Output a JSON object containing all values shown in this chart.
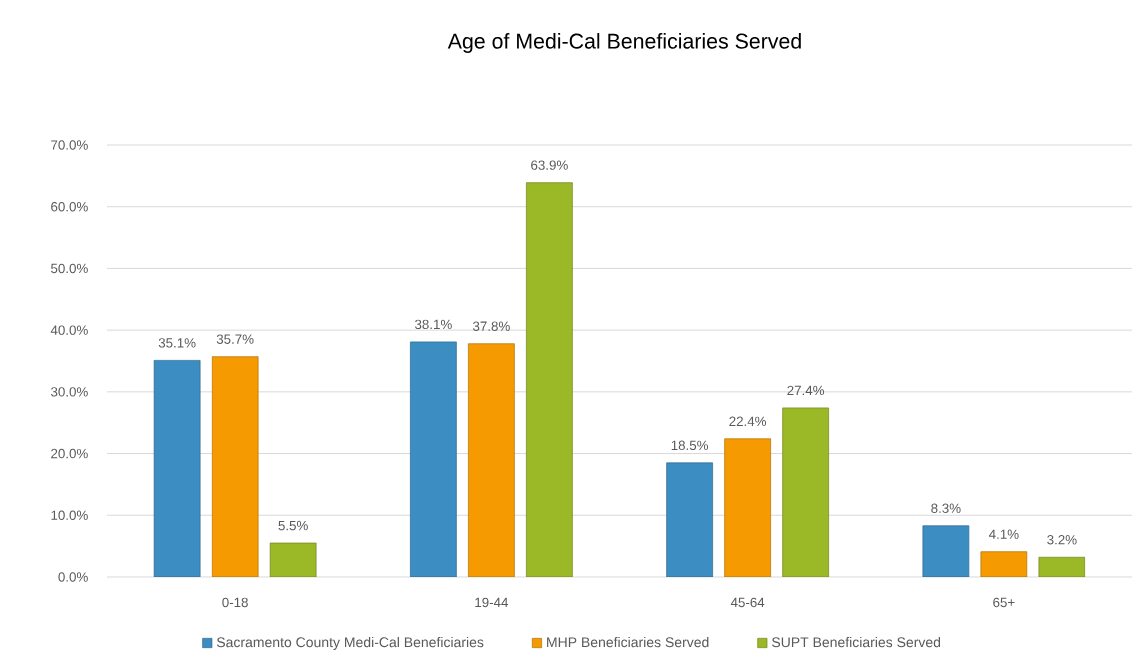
{
  "chart_data": {
    "type": "bar",
    "title": "Age of Medi-Cal Beneficiaries Served",
    "categories": [
      "0-18",
      "19-44",
      "45-64",
      "65+"
    ],
    "series": [
      {
        "name": "Sacramento County Medi-Cal Beneficiaries",
        "color": "#3c8dc2",
        "values": [
          35.1,
          38.1,
          18.5,
          8.3
        ],
        "value_labels": [
          "35.1%",
          "38.1%",
          "18.5%",
          "8.3%"
        ]
      },
      {
        "name": "MHP Beneficiaries Served",
        "color": "#f59a00",
        "values": [
          35.7,
          37.8,
          22.4,
          4.1
        ],
        "value_labels": [
          "35.7%",
          "37.8%",
          "22.4%",
          "4.1%"
        ]
      },
      {
        "name": "SUPT Beneficiaries Served",
        "color": "#9bb826",
        "values": [
          5.5,
          63.9,
          27.4,
          3.2
        ],
        "value_labels": [
          "5.5%",
          "63.9%",
          "27.4%",
          "3.2%"
        ]
      }
    ],
    "ylim": [
      0,
      70
    ],
    "yticks": [
      {
        "value": 0,
        "label": "0.0%"
      },
      {
        "value": 10,
        "label": "10.0%"
      },
      {
        "value": 20,
        "label": "20.0%"
      },
      {
        "value": 30,
        "label": "30.0%"
      },
      {
        "value": 40,
        "label": "40.0%"
      },
      {
        "value": 50,
        "label": "50.0%"
      },
      {
        "value": 60,
        "label": "60.0%"
      },
      {
        "value": 70,
        "label": "70.0%"
      }
    ],
    "grid": "y",
    "legend": "bottom"
  }
}
